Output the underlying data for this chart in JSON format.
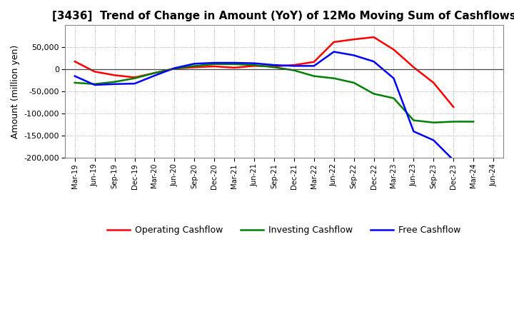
{
  "title": "[3436]  Trend of Change in Amount (YoY) of 12Mo Moving Sum of Cashflows",
  "ylabel": "Amount (million yen)",
  "ylim": [
    -200000,
    100000
  ],
  "yticks": [
    -200000,
    -150000,
    -100000,
    -50000,
    0,
    50000
  ],
  "background_color": "#ffffff",
  "plot_bg_color": "#ffffff",
  "x_labels": [
    "Mar-19",
    "Jun-19",
    "Sep-19",
    "Dec-19",
    "Mar-20",
    "Jun-20",
    "Sep-20",
    "Dec-20",
    "Mar-21",
    "Jun-21",
    "Sep-21",
    "Dec-21",
    "Mar-22",
    "Jun-22",
    "Sep-22",
    "Dec-22",
    "Mar-23",
    "Jun-23",
    "Sep-23",
    "Dec-23",
    "Mar-24",
    "Jun-24"
  ],
  "operating": [
    18000,
    -5000,
    -13000,
    -18000,
    -8000,
    2000,
    5000,
    7000,
    4000,
    8000,
    7000,
    10000,
    17000,
    62000,
    68000,
    73000,
    45000,
    5000,
    -30000,
    -85000,
    null,
    null
  ],
  "investing": [
    -30000,
    -33000,
    -28000,
    -20000,
    -8000,
    2000,
    8000,
    12000,
    12000,
    10000,
    5000,
    -2000,
    -15000,
    -20000,
    -30000,
    -55000,
    -65000,
    -115000,
    -120000,
    -118000,
    -118000,
    null
  ],
  "free": [
    -15000,
    -35000,
    -33000,
    -32000,
    -14000,
    3000,
    13000,
    15000,
    15000,
    14000,
    10000,
    8000,
    8000,
    40000,
    32000,
    18000,
    -20000,
    -140000,
    -160000,
    -205000,
    null,
    null
  ],
  "op_color": "#ff0000",
  "inv_color": "#008000",
  "free_color": "#0000ff",
  "line_width": 1.8,
  "legend_labels": [
    "Operating Cashflow",
    "Investing Cashflow",
    "Free Cashflow"
  ]
}
